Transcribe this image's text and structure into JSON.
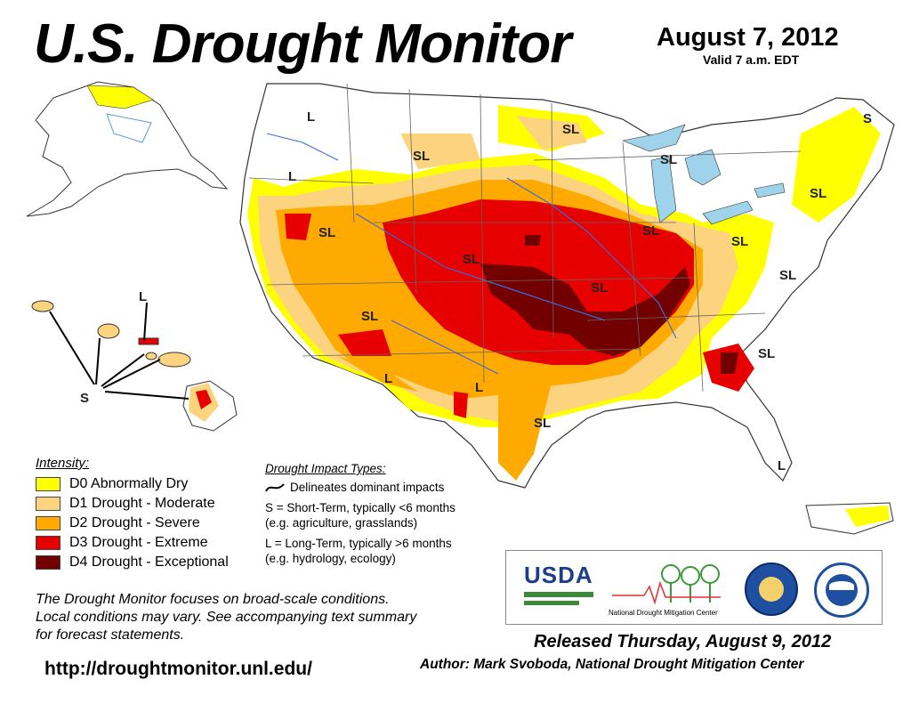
{
  "header": {
    "title": "U.S. Drought Monitor",
    "map_date": "August 7, 2012",
    "valid": "Valid 7 a.m. EDT"
  },
  "legend": {
    "title": "Intensity:",
    "items": [
      {
        "label": "D0 Abnormally Dry",
        "color": "#ffff00"
      },
      {
        "label": "D1 Drought - Moderate",
        "color": "#fcd37f"
      },
      {
        "label": "D2 Drought - Severe",
        "color": "#ffaa00"
      },
      {
        "label": "D3 Drought - Extreme",
        "color": "#e60000"
      },
      {
        "label": "D4 Drought - Exceptional",
        "color": "#730000"
      }
    ]
  },
  "impact_types": {
    "title": "Drought Impact Types:",
    "delineates": "Delineates dominant impacts",
    "short_term_1": "S = Short-Term, typically <6 months",
    "short_term_2": "(e.g. agriculture, grasslands)",
    "long_term_1": "L = Long-Term, typically >6 months",
    "long_term_2": "(e.g. hydrology, ecology)"
  },
  "note": {
    "line1": "The Drought Monitor focuses on broad-scale conditions.",
    "line2": "Local conditions may vary. See accompanying text summary",
    "line3": "for forecast statements."
  },
  "url": "http://droughtmonitor.unl.edu/",
  "released": "Released Thursday, August 9, 2012",
  "author": "Author: Mark Svoboda, National Drought Mitigation Center",
  "logos": {
    "usda": "USDA",
    "ndmc": "National Drought Mitigation Center"
  },
  "map_labels": {
    "sl": "SL",
    "s": "S",
    "l": "L"
  }
}
